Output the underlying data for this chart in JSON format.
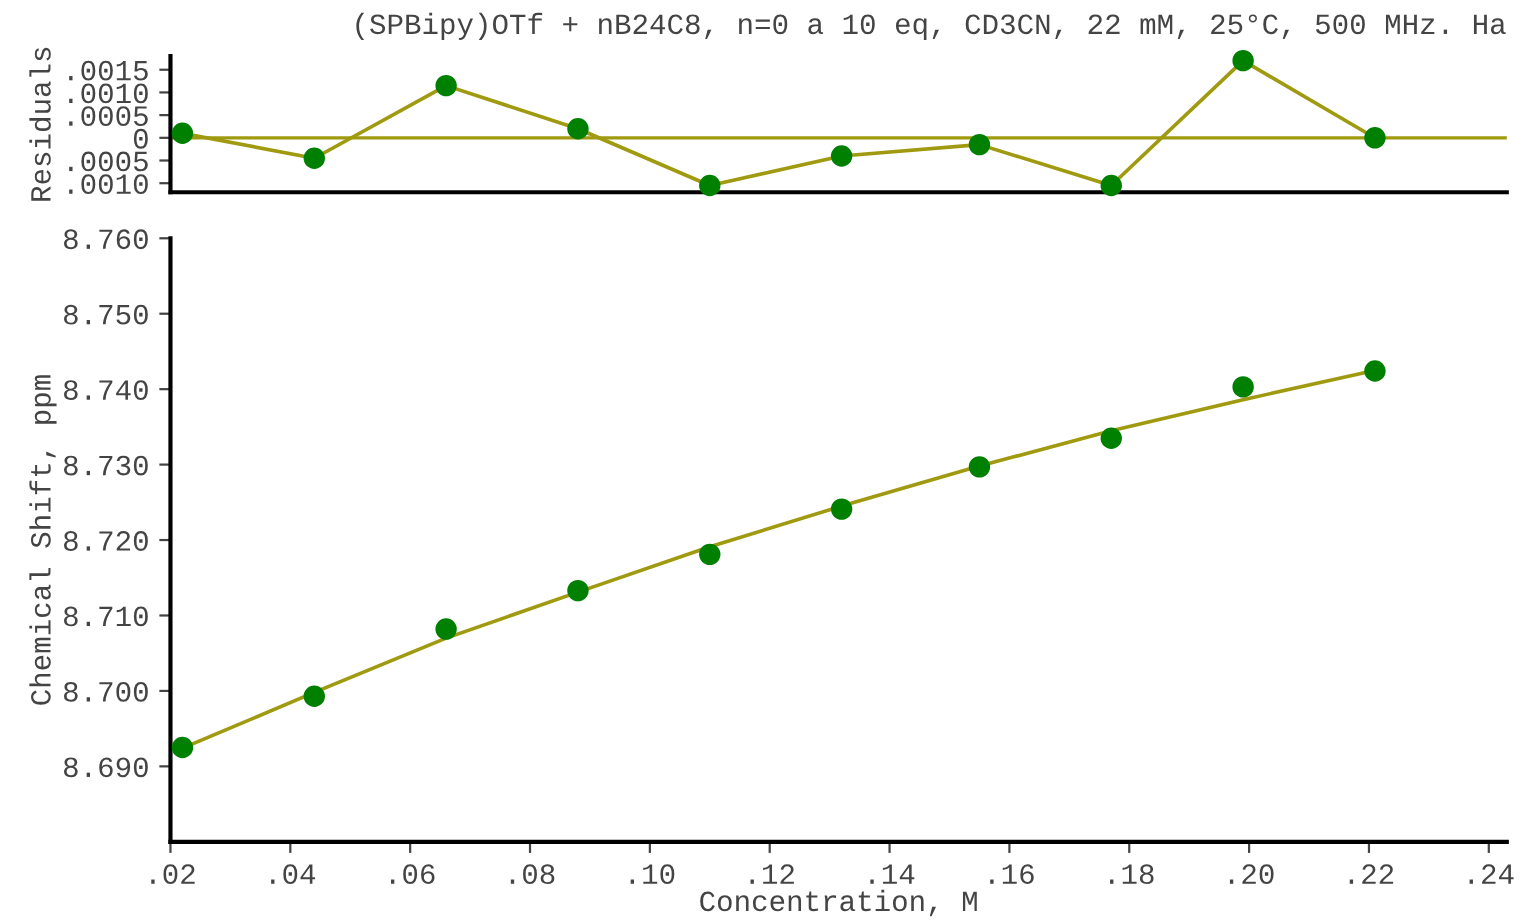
{
  "chart_data": [
    {
      "type": "scatter",
      "title": "(SPBipy)OTf + nB24C8, n=0 a 10 eq, CD3CN, 22 mM, 25°C, 500 MHz. Ha",
      "ylabel": "Residuals",
      "xlim": [
        0.02,
        0.243
      ],
      "ylim": [
        -0.0012,
        0.0018
      ],
      "tick_labels": "y",
      "yticks": [
        {
          "value": 0.0015,
          "label": ".0015"
        },
        {
          "value": 0.001,
          "label": ".0010"
        },
        {
          "value": 0.0005,
          "label": ".0005"
        },
        0,
        {
          "value": -0.0005,
          "label": ".0005"
        },
        {
          "value": -0.001,
          "label": ".0010"
        }
      ],
      "ref_lines": [
        {
          "axis": "y",
          "value": 0,
          "color": "#a09a10"
        }
      ],
      "series": [
        {
          "type": "line",
          "color": "#a09a10",
          "marker": "none",
          "x": [
            0.022,
            0.044,
            0.066,
            0.088,
            0.11,
            0.132,
            0.155,
            0.177,
            0.199,
            0.221
          ],
          "values": [
            0.0001,
            -0.00045,
            0.00115,
            0.0002,
            -0.00105,
            -0.0004,
            -0.00015,
            -0.00105,
            0.0017,
            0
          ]
        },
        {
          "color": "#008000",
          "marker": "circle",
          "x": [
            0.022,
            0.044,
            0.066,
            0.088,
            0.11,
            0.132,
            0.155,
            0.177,
            0.199,
            0.221
          ],
          "values": [
            0.0001,
            -0.00045,
            0.00115,
            0.0002,
            -0.00105,
            -0.0004,
            -0.00015,
            -0.00105,
            0.0017,
            0
          ]
        }
      ]
    },
    {
      "type": "scatter",
      "xlabel": "Concentration, M",
      "ylabel": "Chemical Shift, ppm",
      "xlim": [
        0.02,
        0.243
      ],
      "ylim": [
        8.68,
        8.76
      ],
      "xticks": [
        {
          "value": 0.02,
          "label": ".02"
        },
        {
          "value": 0.04,
          "label": ".04"
        },
        {
          "value": 0.06,
          "label": ".06"
        },
        {
          "value": 0.08,
          "label": ".08"
        },
        {
          "value": 0.1,
          "label": ".10"
        },
        {
          "value": 0.12,
          "label": ".12"
        },
        {
          "value": 0.14,
          "label": ".14"
        },
        {
          "value": 0.16,
          "label": ".16"
        },
        {
          "value": 0.18,
          "label": ".18"
        },
        {
          "value": 0.2,
          "label": ".20"
        },
        {
          "value": 0.22,
          "label": ".22"
        },
        {
          "value": 0.24,
          "label": ".24"
        }
      ],
      "yticks": [
        {
          "value": 8.69,
          "label": "8.690"
        },
        {
          "value": 8.7,
          "label": "8.700"
        },
        {
          "value": 8.71,
          "label": "8.710"
        },
        {
          "value": 8.72,
          "label": "8.720"
        },
        {
          "value": 8.73,
          "label": "8.730"
        },
        {
          "value": 8.74,
          "label": "8.740"
        },
        {
          "value": 8.75,
          "label": "8.750"
        },
        {
          "value": 8.76,
          "label": "8.760"
        }
      ],
      "series": [
        {
          "type": "line",
          "color": "#a09a10",
          "marker": "none",
          "x": [
            0.022,
            0.044,
            0.066,
            0.088,
            0.11,
            0.132,
            0.155,
            0.177,
            0.199,
            0.221
          ],
          "values": [
            8.6924,
            8.6998,
            8.707,
            8.7131,
            8.7191,
            8.7245,
            8.7298,
            8.7345,
            8.7386,
            8.7425
          ]
        },
        {
          "color": "#008000",
          "marker": "circle",
          "x": [
            0.022,
            0.044,
            0.066,
            0.088,
            0.11,
            0.132,
            0.155,
            0.177,
            0.199,
            0.221
          ],
          "values": [
            8.6925,
            8.6993,
            8.7082,
            8.7133,
            8.7181,
            8.7241,
            8.7297,
            8.7335,
            8.7403,
            8.7424
          ]
        }
      ]
    }
  ]
}
